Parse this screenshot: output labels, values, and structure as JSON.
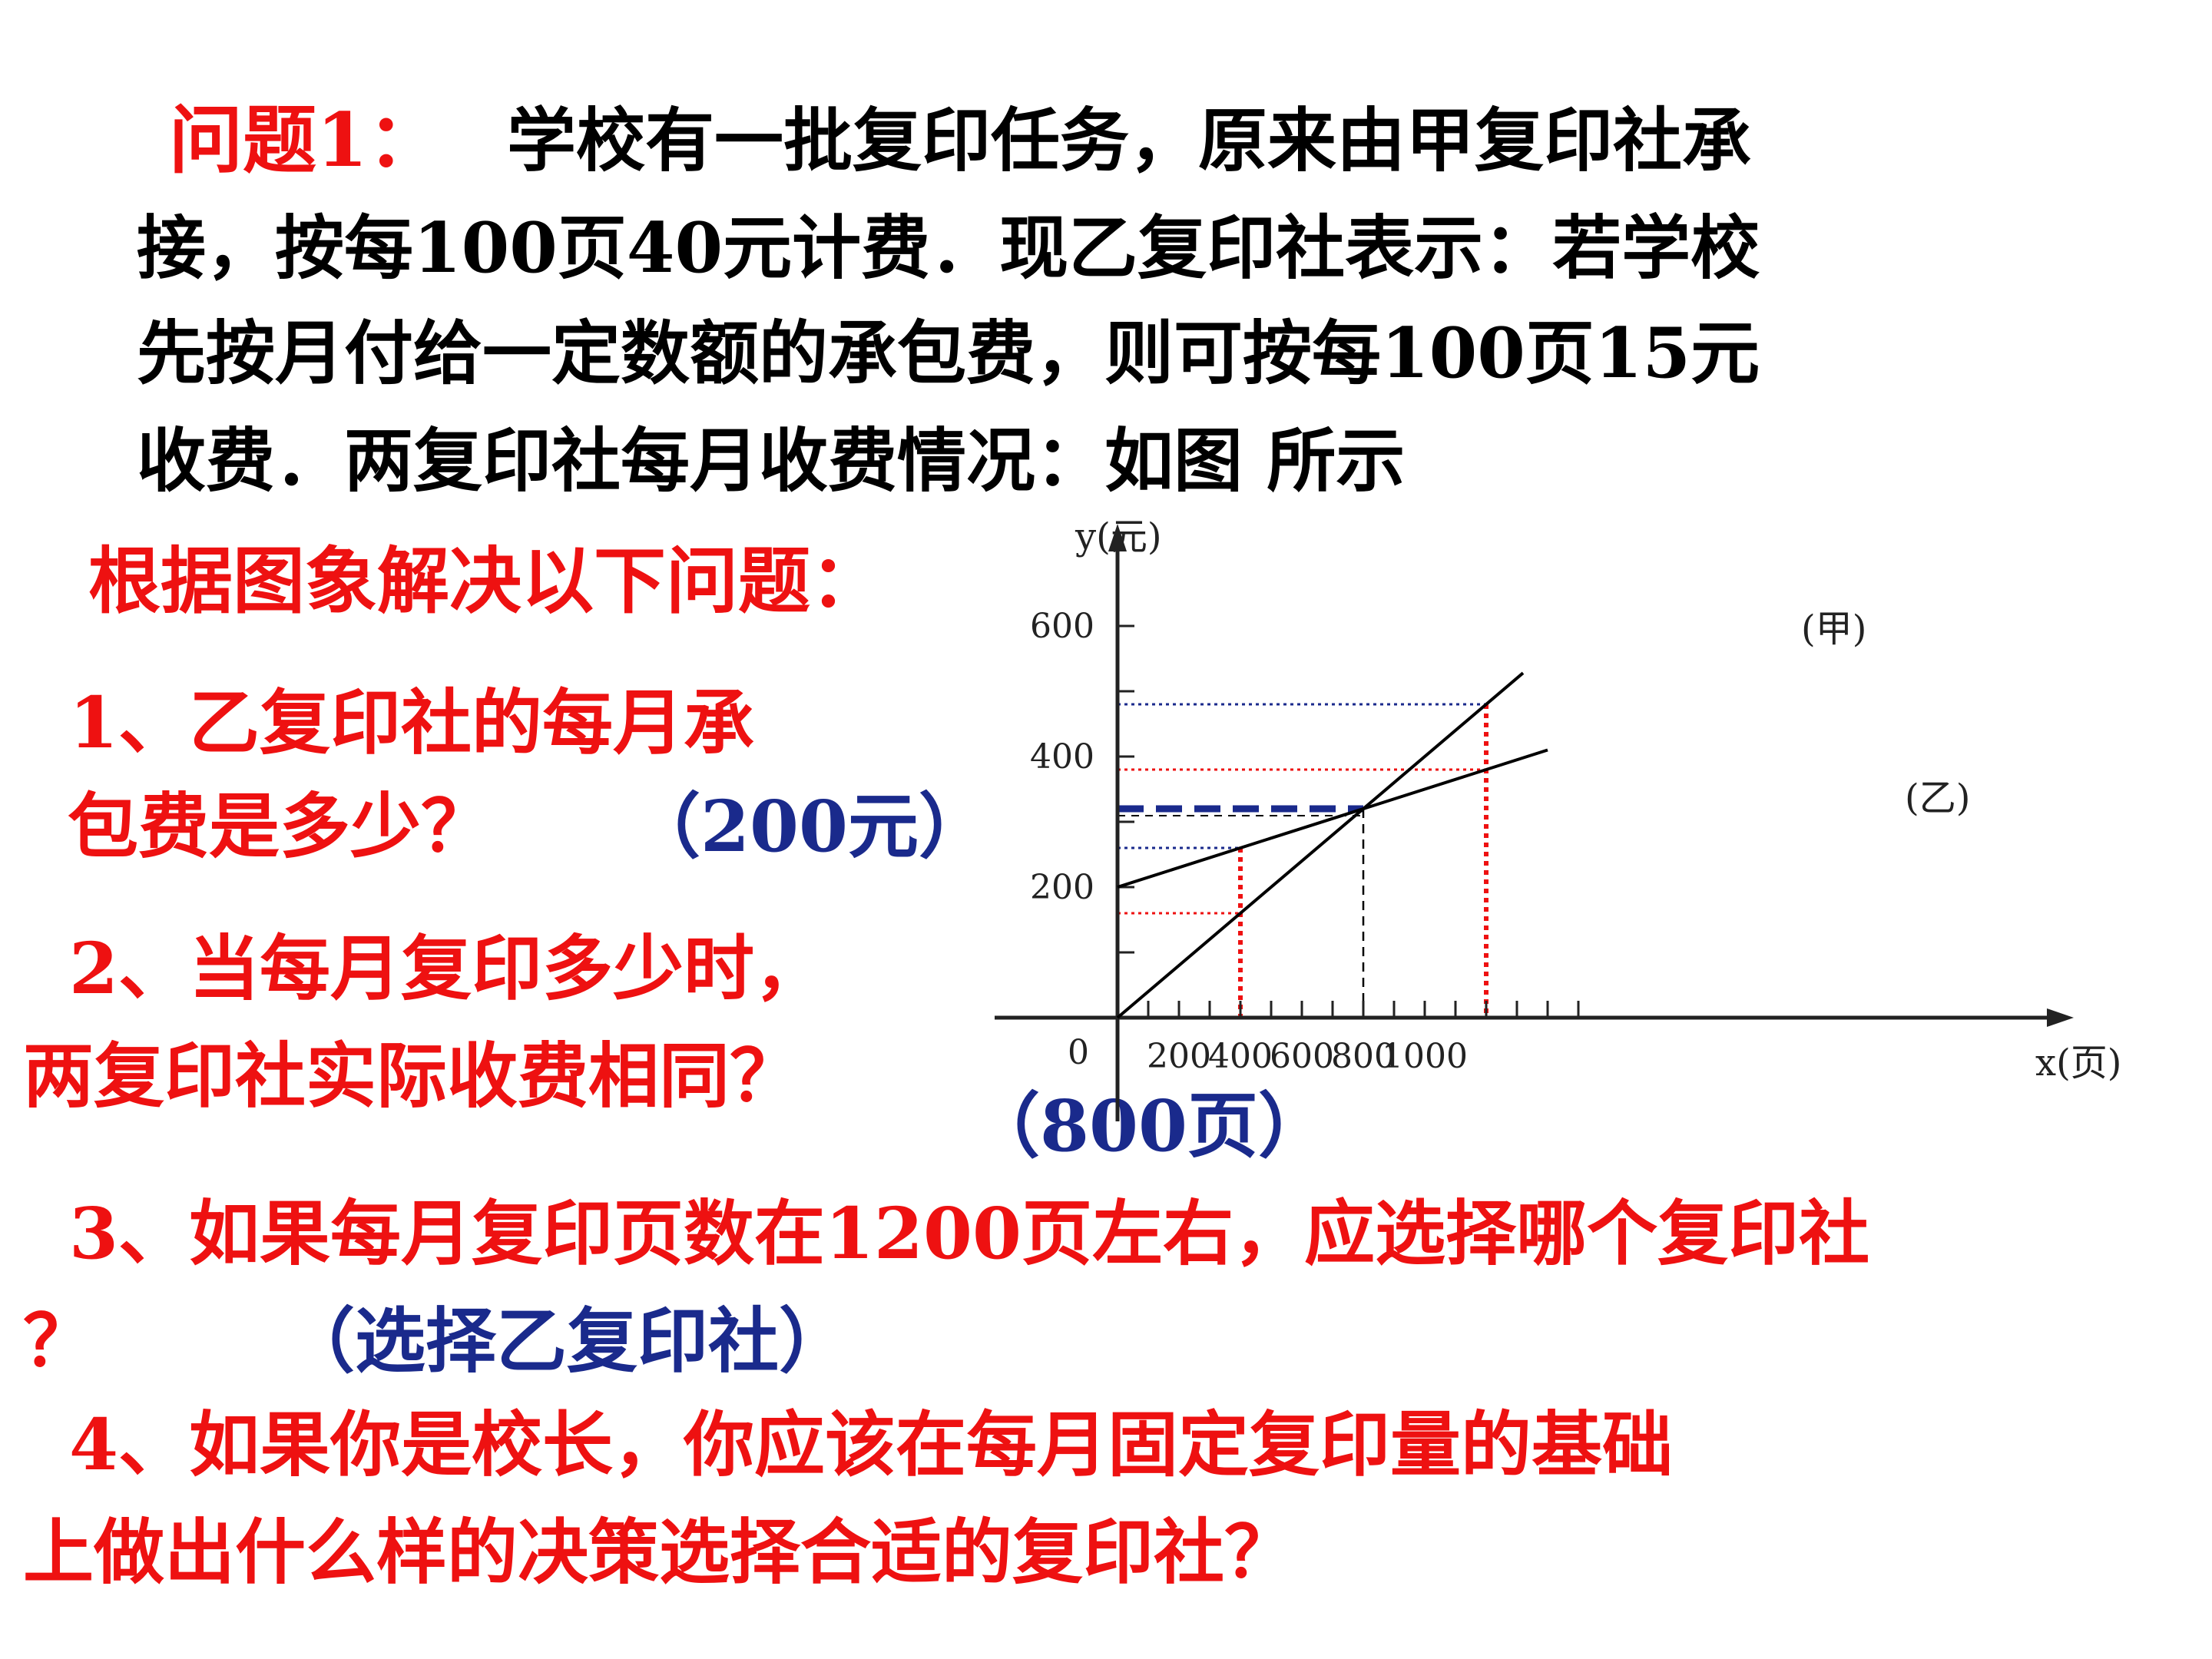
{
  "problem": {
    "label": "问题1：",
    "line1": "学校有一批复印任务，原来由甲复印社承",
    "line2": "接，按每100页40元计费．现乙复印社表示：若学校",
    "line3": "先按月付给一定数额的承包费，则可按每100页15元",
    "line4": "收费．两复印社每月收费情况：如图 所示"
  },
  "prompt": "根据图象解决以下问题：",
  "questions": {
    "q1_line1": "1、乙复印社的每月承",
    "q1_line2": "包费是多少？",
    "q1_answer": "（200元）",
    "q2_line1": "2、当每月复印多少时，",
    "q2_line2": "两复印社实际收费相同？",
    "q2_answer": "（800页）",
    "q3_line1": "3、如果每月复印页数在1200页左右，应选择哪个复印社",
    "q3_line2": "？",
    "q3_answer": "（选择乙复印社）",
    "q4_line1": "4、如果你是校长，你应该在每月固定复印量的基础",
    "q4_line2": "上做出什么样的决策选择合适的复印社？"
  },
  "chart_data": {
    "type": "line",
    "xlabel": "x(页)",
    "ylabel": "y(元)",
    "origin_label": "0",
    "x_tick_labels": [
      200,
      400,
      600,
      800,
      1000
    ],
    "y_tick_labels": [
      200,
      400,
      600
    ],
    "xlim": [
      0,
      1600
    ],
    "ylim": [
      0,
      700
    ],
    "series": [
      {
        "name": "(甲)",
        "x": [
          0,
          1320
        ],
        "y": [
          0,
          528
        ]
      },
      {
        "name": "(乙)",
        "x": [
          0,
          1400
        ],
        "y": [
          200,
          410
        ]
      }
    ],
    "intersection": {
      "x": 800,
      "y": 320
    },
    "markers": [
      {
        "x": 400,
        "y1": 160,
        "y2": 260
      },
      {
        "x": 1200,
        "y1": 380,
        "y2": 480
      }
    ],
    "colors": {
      "line": "#000000",
      "red_guide": "#ee1111",
      "blue_guide": "#1a2a8c",
      "axis": "#222222"
    }
  }
}
